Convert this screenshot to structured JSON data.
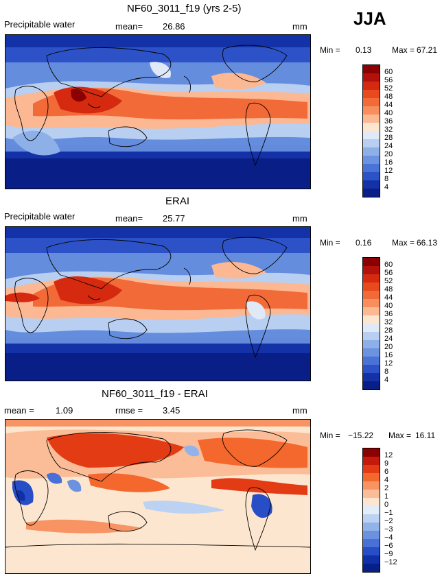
{
  "season": "JJA",
  "panels": [
    {
      "title": "NF60_3011_f19 (yrs 2-5)",
      "variable_label": "Precipitable water",
      "stat_label": "mean=",
      "stat_value": "26.86",
      "units": "mm",
      "min_label": "Min =",
      "min_value": "0.13",
      "max_label": "Max =",
      "max_value": "67.21",
      "colorbar_labels": [
        "60",
        "56",
        "52",
        "48",
        "44",
        "40",
        "36",
        "32",
        "28",
        "24",
        "20",
        "16",
        "12",
        "8",
        "4"
      ]
    },
    {
      "title": "ERAI",
      "variable_label": "Precipitable water",
      "stat_label": "mean=",
      "stat_value": "25.77",
      "units": "mm",
      "min_label": "Min =",
      "min_value": "0.16",
      "max_label": "Max =",
      "max_value": "66.13",
      "colorbar_labels": [
        "60",
        "56",
        "52",
        "48",
        "44",
        "40",
        "36",
        "32",
        "28",
        "24",
        "20",
        "16",
        "12",
        "8",
        "4"
      ]
    },
    {
      "title": "NF60_3011_f19 - ERAI",
      "mean_label": "mean =",
      "mean_value": "1.09",
      "rmse_label": "rmse =",
      "rmse_value": "3.45",
      "units": "mm",
      "min_label": "Min =",
      "min_value": "−15.22",
      "max_label": "Max =",
      "max_value": "16.11",
      "colorbar_labels": [
        "12",
        "9",
        "6",
        "4",
        "2",
        "1",
        "0",
        "−1",
        "−2",
        "−3",
        "−4",
        "−6",
        "−9",
        "−12"
      ]
    }
  ],
  "colors": {
    "abs_scale": [
      "#8b0000",
      "#b3120c",
      "#d62a10",
      "#e8491f",
      "#f16a38",
      "#f78e5e",
      "#fbb892",
      "#fde6cf",
      "#dfe9f8",
      "#b9cff1",
      "#8eb0e8",
      "#6b93e0",
      "#4a73d8",
      "#2d52c8",
      "#1432a8",
      "#0a1e88"
    ],
    "diff_scale": [
      "#8b0000",
      "#c41a0c",
      "#e33b14",
      "#f4682e",
      "#f89464",
      "#fbbd98",
      "#fde6cf",
      "#e3ecf9",
      "#bcd2f2",
      "#92b3ea",
      "#6b92df",
      "#4870d6",
      "#274ec6",
      "#0f30a6",
      "#06208a"
    ]
  }
}
